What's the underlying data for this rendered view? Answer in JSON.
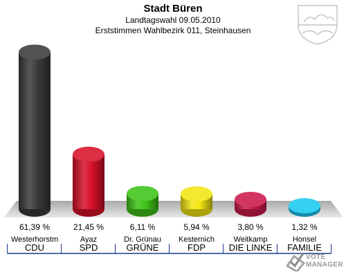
{
  "header": {
    "title": "Stadt Büren",
    "subtitle": "Landtagswahl 09.05.2010",
    "district": "Erststimmen Wahlbezirk 011, Steinhausen"
  },
  "logo": {
    "icon": "coat-of-arms-icon"
  },
  "watermark": {
    "line1": "VOTE",
    "line2": "MANAGER",
    "icon": "checkmark-ballot-icon"
  },
  "chart_data": {
    "type": "bar",
    "categories": [
      "CDU",
      "SPD",
      "GRÜNE",
      "FDP",
      "DIE LINKE",
      "FAMILIE"
    ],
    "candidates": [
      "Westerhorstm",
      "Ayaz",
      "Dr. Grünau",
      "Kesternich",
      "Weitkamp",
      "Honsel"
    ],
    "values": [
      61.39,
      21.45,
      6.11,
      5.94,
      3.8,
      1.32
    ],
    "value_labels": [
      "61,39 %",
      "21,45 %",
      "6,11 %",
      "5,94 %",
      "3,80 %",
      "1,32 %"
    ],
    "colors": [
      "#3a3a3a",
      "#d8112a",
      "#3ec418",
      "#f3e612",
      "#cc1a4c",
      "#19c8f0"
    ],
    "ylim": [
      0,
      65
    ],
    "grid": false
  }
}
